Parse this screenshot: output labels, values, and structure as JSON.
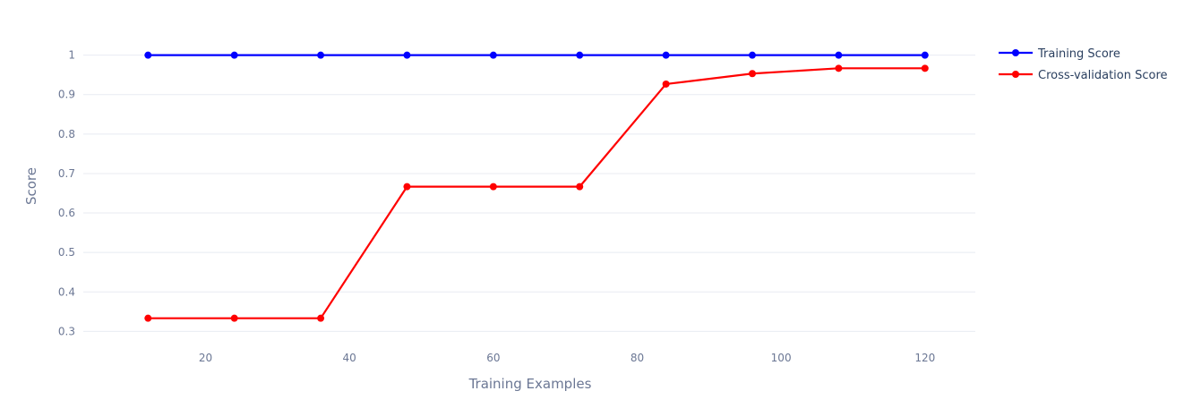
{
  "chart_data": {
    "type": "line",
    "title": "",
    "xlabel": "Training Examples",
    "ylabel": "Score",
    "x": [
      12,
      24,
      36,
      48,
      60,
      72,
      84,
      96,
      108,
      120
    ],
    "series": [
      {
        "name": "Training Score",
        "color": "#0000ff",
        "values": [
          1,
          1,
          1,
          1,
          1,
          1,
          1,
          1,
          1,
          1
        ]
      },
      {
        "name": "Cross-validation Score",
        "color": "#ff0000",
        "values": [
          0.3333,
          0.3333,
          0.3333,
          0.6667,
          0.6667,
          0.6667,
          0.9267,
          0.9533,
          0.9667,
          0.9667
        ]
      }
    ],
    "xlim": [
      3,
      127
    ],
    "ylim": [
      0.3,
      1
    ],
    "x_ticks": [
      20,
      40,
      60,
      80,
      100,
      120
    ],
    "x_tick_labels": [
      "20",
      "40",
      "60",
      "80",
      "100",
      "120"
    ],
    "y_ticks": [
      0.3,
      0.4,
      0.5,
      0.6,
      0.7,
      0.8,
      0.9,
      1
    ],
    "y_tick_labels": [
      "0.3",
      "0.4",
      "0.5",
      "0.6",
      "0.7",
      "0.8",
      "0.9",
      "1"
    ],
    "grid": true,
    "legend_position": "top-right"
  }
}
